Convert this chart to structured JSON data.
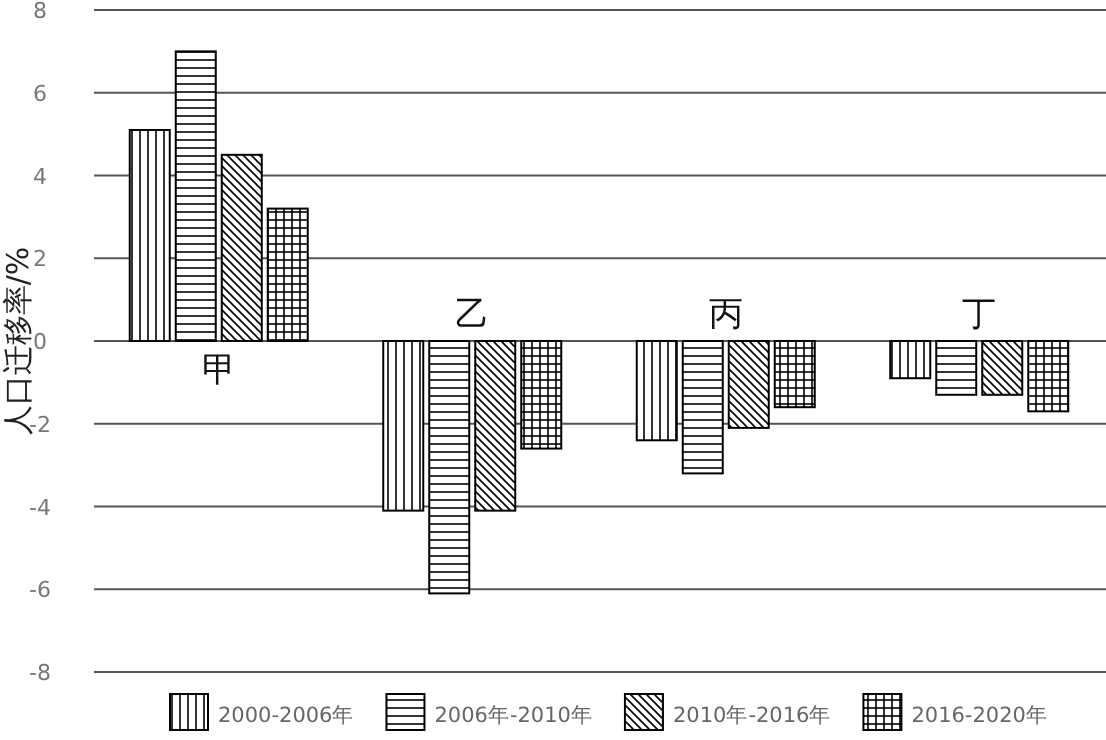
{
  "chart_data": {
    "type": "bar",
    "ylabel": "人口迁移率/%",
    "categories": [
      "甲",
      "乙",
      "丙",
      "丁"
    ],
    "series": [
      {
        "name": "2000-2006年",
        "color": "#000000",
        "values": [
          5.1,
          -4.1,
          -2.4,
          -0.9
        ]
      },
      {
        "name": "2006年-2010年",
        "color": "#000000",
        "values": [
          7.0,
          -6.1,
          -3.2,
          -1.3
        ]
      },
      {
        "name": "2010年-2016年",
        "color": "#000000",
        "values": [
          4.5,
          -4.1,
          -2.1,
          -1.3
        ]
      },
      {
        "name": "2016-2020年",
        "color": "#000000",
        "values": [
          3.2,
          -2.6,
          -1.6,
          -1.7
        ]
      }
    ],
    "ylim": [
      -8,
      8
    ],
    "yticks": [
      -8,
      -6,
      -4,
      -2,
      0,
      2,
      4,
      6,
      8
    ],
    "grid": "y",
    "legend": "bottom"
  }
}
